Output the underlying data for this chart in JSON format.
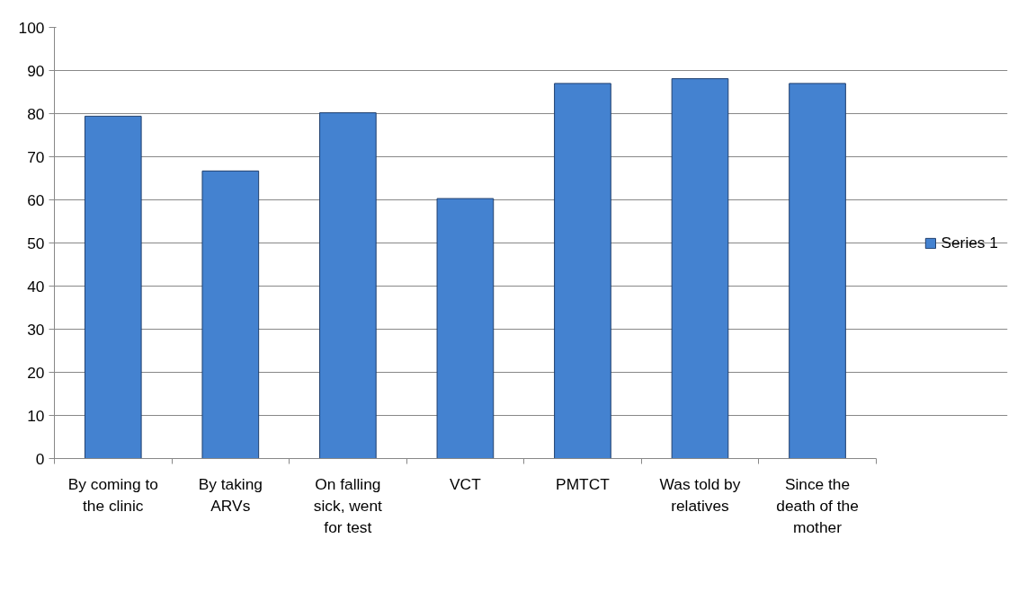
{
  "chart_data": {
    "type": "bar",
    "categories": [
      "By coming to the clinic",
      "By taking ARVs",
      "On falling sick, went for test",
      "VCT",
      "PMTCT",
      "Was told by relatives",
      "Since the death of the mother"
    ],
    "series": [
      {
        "name": "Series 1",
        "color": "#4482d0",
        "values": [
          79.4,
          66.7,
          80.2,
          60.3,
          87.0,
          88.1,
          87.0
        ]
      }
    ],
    "ylim": [
      0,
      100
    ],
    "yticks": [
      0,
      10,
      20,
      30,
      40,
      50,
      60,
      70,
      80,
      90,
      100
    ],
    "grid": "y",
    "legend": "right"
  }
}
